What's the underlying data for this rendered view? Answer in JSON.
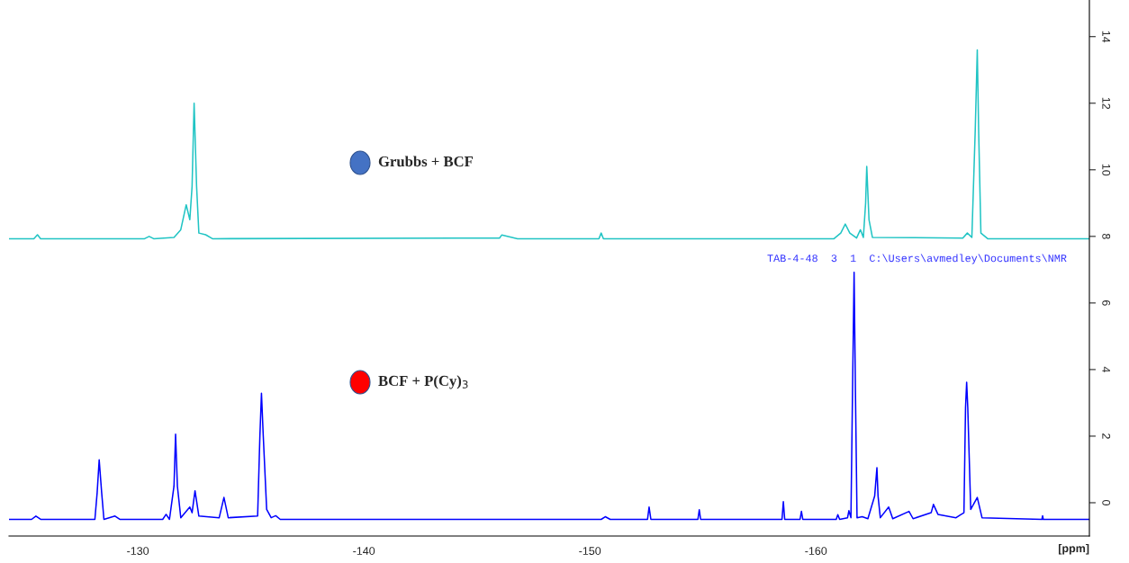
{
  "chart_data": {
    "type": "line",
    "xlabel": "[ppm]",
    "xlim": [
      -124.3,
      -172.1
    ],
    "xticks": [
      -130,
      -140,
      -150,
      -160
    ],
    "ylim": [
      -1.0,
      15.1
    ],
    "yticks": [
      0,
      2,
      4,
      6,
      8,
      10,
      12,
      14
    ],
    "grid": false,
    "legend": false,
    "marker": "none",
    "line_style": "solid",
    "annotations": [
      "Grubbs + BCF",
      "BCF + P(Cy)$_{3}$",
      "TAB-4-48  3  1  C:\\Users\\avmedley\\Documents\\NMR"
    ],
    "series": [
      {
        "color": "#20c4c4",
        "x": [
          -124.3,
          -125.4,
          -125.56,
          -125.7,
          -130.3,
          -130.5,
          -130.7,
          -131.6,
          -131.9,
          -132.14,
          -132.3,
          -132.4,
          -132.49,
          -132.6,
          -132.7,
          -133.0,
          -133.3,
          -146.0,
          -146.1,
          -146.8,
          -150.4,
          -150.5,
          -150.6,
          -160.8,
          -161.1,
          -161.3,
          -161.5,
          -161.8,
          -161.97,
          -162.1,
          -162.2,
          -162.25,
          -162.35,
          -162.5,
          -166.5,
          -166.7,
          -166.9,
          -167.05,
          -167.14,
          -167.2,
          -167.3,
          -167.6,
          -172.1
        ],
        "values": [
          7.93,
          7.93,
          8.05,
          7.93,
          7.93,
          8.0,
          7.93,
          7.97,
          8.2,
          8.95,
          8.5,
          9.5,
          12.0,
          9.5,
          8.1,
          8.05,
          7.93,
          7.95,
          8.04,
          7.93,
          7.93,
          8.1,
          7.93,
          7.93,
          8.1,
          8.37,
          8.1,
          7.95,
          8.2,
          7.97,
          9.0,
          10.1,
          8.5,
          7.97,
          7.95,
          8.1,
          7.97,
          11.2,
          13.6,
          11.2,
          8.1,
          7.93,
          7.93
        ]
      },
      {
        "color": "#0000ff",
        "x": [
          -124.3,
          -125.3,
          -125.49,
          -125.7,
          -128.1,
          -128.2,
          -128.29,
          -128.4,
          -128.5,
          -128.99,
          -129.2,
          -131.1,
          -131.25,
          -131.4,
          -131.6,
          -131.67,
          -131.75,
          -131.9,
          -132.3,
          -132.4,
          -132.53,
          -132.7,
          -133.6,
          -133.81,
          -134.0,
          -135.3,
          -135.4,
          -135.47,
          -135.55,
          -135.7,
          -135.9,
          -136.1,
          -136.3,
          -150.5,
          -150.68,
          -150.9,
          -152.55,
          -152.62,
          -152.7,
          -154.78,
          -154.84,
          -154.9,
          -158.5,
          -158.56,
          -158.62,
          -159.3,
          -159.36,
          -159.42,
          -160.9,
          -160.97,
          -161.05,
          -161.4,
          -161.46,
          -161.55,
          -161.62,
          -161.69,
          -161.75,
          -161.82,
          -162.05,
          -162.3,
          -162.6,
          -162.7,
          -162.75,
          -162.85,
          -163.22,
          -163.4,
          -164.12,
          -164.3,
          -165.1,
          -165.2,
          -165.4,
          -166.2,
          -166.4,
          -166.55,
          -166.62,
          -166.67,
          -166.72,
          -166.85,
          -167.14,
          -167.35,
          -170.0,
          -170.03,
          -170.06,
          -172.1
        ],
        "values": [
          -0.5,
          -0.5,
          -0.4,
          -0.5,
          -0.5,
          0.3,
          1.29,
          0.3,
          -0.5,
          -0.4,
          -0.5,
          -0.5,
          -0.35,
          -0.5,
          0.5,
          2.06,
          0.5,
          -0.45,
          -0.13,
          -0.3,
          0.36,
          -0.4,
          -0.45,
          0.16,
          -0.45,
          -0.4,
          2.0,
          3.29,
          2.0,
          -0.2,
          -0.45,
          -0.39,
          -0.5,
          -0.5,
          -0.42,
          -0.5,
          -0.5,
          -0.13,
          -0.5,
          -0.5,
          -0.21,
          -0.5,
          -0.5,
          0.03,
          -0.5,
          -0.5,
          -0.26,
          -0.5,
          -0.5,
          -0.36,
          -0.5,
          -0.45,
          -0.24,
          -0.45,
          3.31,
          6.92,
          3.31,
          -0.45,
          -0.42,
          -0.48,
          0.2,
          1.05,
          0.2,
          -0.45,
          -0.13,
          -0.48,
          -0.26,
          -0.48,
          -0.3,
          -0.05,
          -0.35,
          -0.45,
          -0.36,
          -0.3,
          2.85,
          3.62,
          2.85,
          -0.2,
          0.16,
          -0.45,
          -0.5,
          -0.39,
          -0.5,
          -0.5
        ]
      }
    ]
  }
}
